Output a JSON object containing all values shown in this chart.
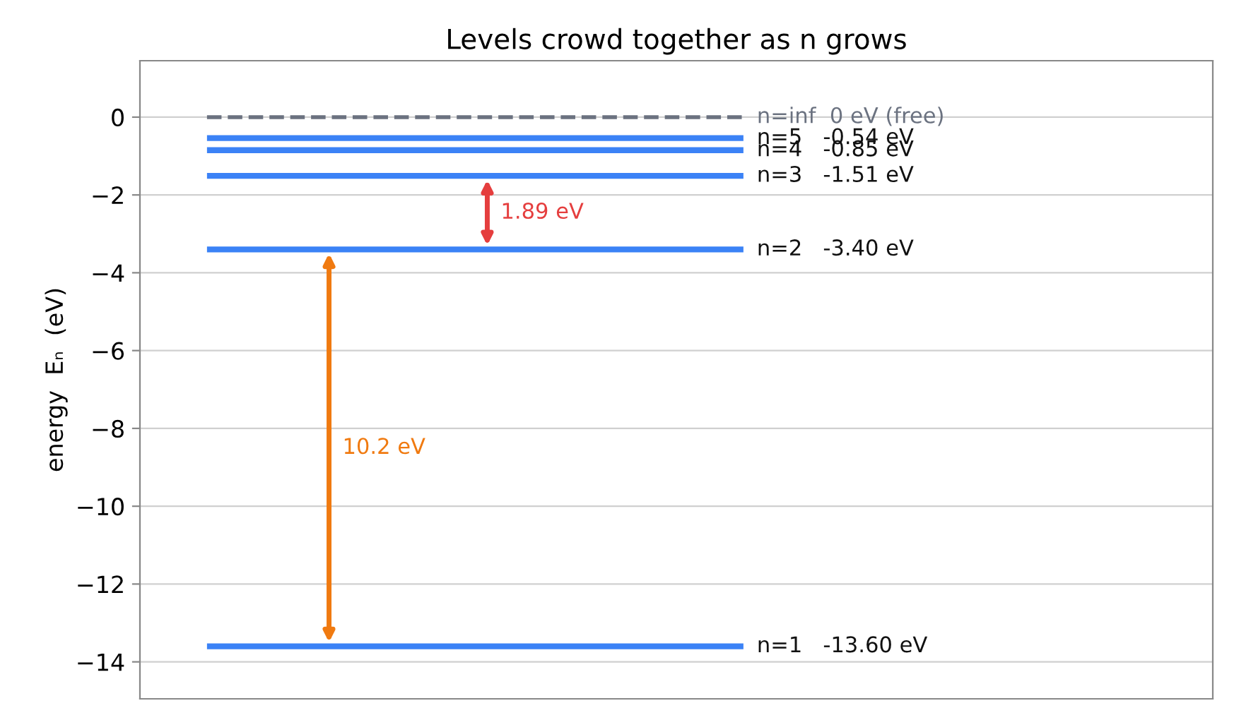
{
  "chart_data": {
    "type": "line",
    "title": "Levels crowd together as n grows",
    "ylabel": "energy  Eₙ  (eV)",
    "categories": [
      null,
      null,
      null,
      null,
      null,
      null,
      null,
      null
    ],
    "ylim": [
      -14.95,
      1.45
    ],
    "yticks": [
      {
        "value": 0,
        "label": "0"
      },
      {
        "value": -2,
        "label": "−2"
      },
      {
        "value": -4,
        "label": "−4"
      },
      {
        "value": -6,
        "label": "−6"
      },
      {
        "value": -8,
        "label": "−8"
      },
      {
        "value": -10,
        "label": "−10"
      },
      {
        "value": -12,
        "label": "−12"
      },
      {
        "value": -14,
        "label": "−14"
      }
    ],
    "grid": "y",
    "tick_labels": "y",
    "marker": "none",
    "legend": false,
    "series": [
      {
        "name": "n=inf  0 eV (free)",
        "color": "#6b7280",
        "line_style": "dashed",
        "values": [
          0,
          0,
          0,
          0,
          0,
          null,
          null,
          null
        ]
      },
      {
        "name": "n=5   -0.54 eV",
        "color": "#3b82f6",
        "values": [
          -0.54,
          -0.54,
          -0.54,
          -0.54,
          -0.54,
          null,
          null,
          null
        ]
      },
      {
        "name": "n=4   -0.85 eV",
        "color": "#3b82f6",
        "values": [
          -0.85,
          -0.85,
          -0.85,
          -0.85,
          -0.85,
          null,
          null,
          null
        ]
      },
      {
        "name": "n=3   -1.51 eV",
        "color": "#3b82f6",
        "values": [
          -1.51,
          -1.51,
          -1.51,
          -1.51,
          -1.51,
          null,
          null,
          null
        ]
      },
      {
        "name": "n=2   -3.40 eV",
        "color": "#3b82f6",
        "values": [
          -3.4,
          -3.4,
          -3.4,
          -3.4,
          -3.4,
          null,
          null,
          null
        ]
      },
      {
        "name": "n=1   -13.60 eV",
        "color": "#3b82f6",
        "values": [
          -13.6,
          -13.6,
          -13.6,
          -13.6,
          -13.6,
          null,
          null,
          null
        ]
      }
    ],
    "annotations": [
      "10.2 eV",
      "1.89 eV"
    ]
  }
}
